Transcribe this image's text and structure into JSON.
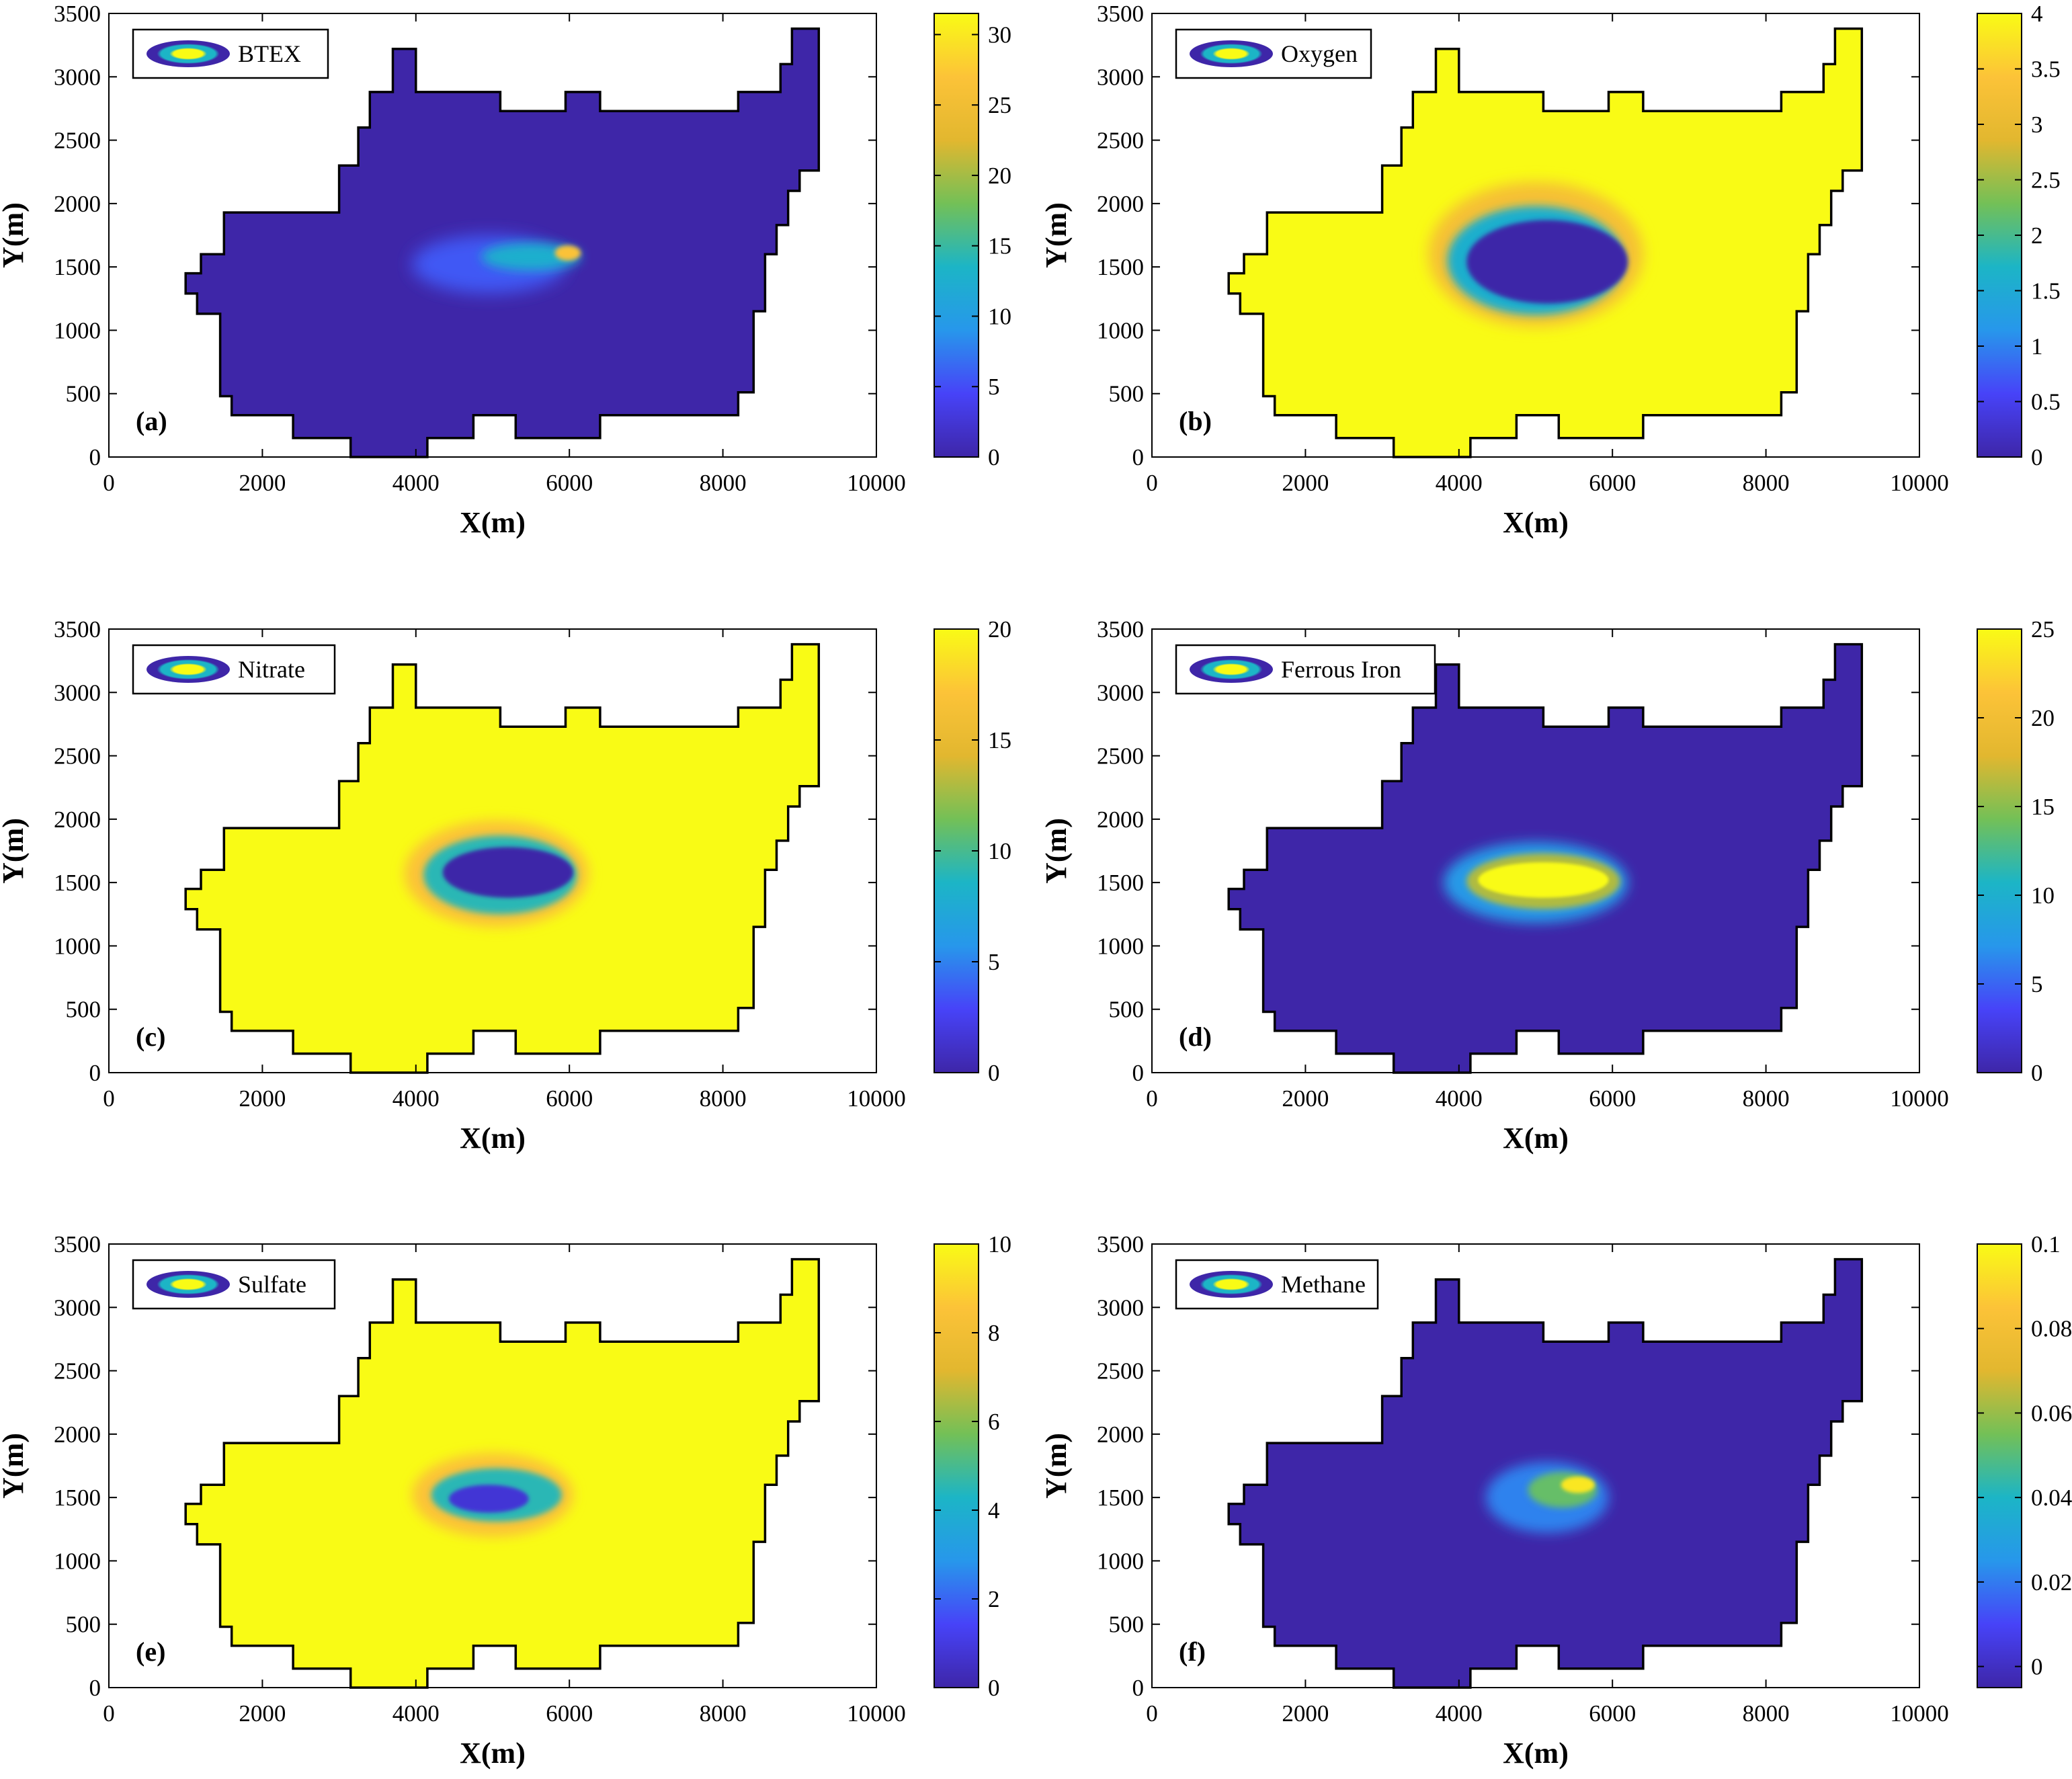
{
  "chart_data": [
    {
      "type": "heatmap",
      "panel_label": "(a)",
      "legend": "BTEX",
      "xlabel": "X(m)",
      "ylabel": "Y(m)",
      "xlim": [
        0,
        10000
      ],
      "ylim": [
        0,
        3500
      ],
      "xticks": [
        "0",
        "2000",
        "4000",
        "6000",
        "8000",
        "10000"
      ],
      "yticks": [
        "0",
        "500",
        "1000",
        "1500",
        "2000",
        "2500",
        "3000",
        "3500"
      ],
      "colorbar": {
        "min": 0,
        "max": 31.5,
        "ticks": [
          "0",
          "5",
          "10",
          "15",
          "20",
          "25",
          "30"
        ]
      },
      "background_level": 0,
      "plume": [
        {
          "cx": 4950,
          "cy": 1520,
          "rx": 1000,
          "ry": 230,
          "level": 0.18,
          "blur": 110
        },
        {
          "cx": 5500,
          "cy": 1580,
          "rx": 650,
          "ry": 110,
          "level": 0.4,
          "blur": 70
        },
        {
          "cx": 5980,
          "cy": 1610,
          "rx": 170,
          "ry": 60,
          "level": 0.85,
          "blur": 30
        }
      ]
    },
    {
      "type": "heatmap",
      "panel_label": "(b)",
      "legend": "Oxygen",
      "xlabel": "X(m)",
      "ylabel": "Y(m)",
      "xlim": [
        0,
        10000
      ],
      "ylim": [
        0,
        3500
      ],
      "xticks": [
        "0",
        "2000",
        "4000",
        "6000",
        "8000",
        "10000"
      ],
      "yticks": [
        "0",
        "500",
        "1000",
        "1500",
        "2000",
        "2500",
        "3000",
        "3500"
      ],
      "colorbar": {
        "min": 0,
        "max": 4,
        "ticks": [
          "0",
          "0.5",
          "1",
          "1.5",
          "2",
          "2.5",
          "3",
          "3.5",
          "4"
        ]
      },
      "background_level": 1,
      "plume": [
        {
          "cx": 5000,
          "cy": 1600,
          "rx": 1400,
          "ry": 570,
          "level": 0.82,
          "blur": 90
        },
        {
          "cx": 5000,
          "cy": 1550,
          "rx": 1150,
          "ry": 430,
          "level": 0.4,
          "blur": 55
        },
        {
          "cx": 5150,
          "cy": 1540,
          "rx": 1050,
          "ry": 330,
          "level": 0.0,
          "blur": 30
        }
      ]
    },
    {
      "type": "heatmap",
      "panel_label": "(c)",
      "legend": "Nitrate",
      "xlabel": "X(m)",
      "ylabel": "Y(m)",
      "xlim": [
        0,
        10000
      ],
      "ylim": [
        0,
        3500
      ],
      "xticks": [
        "0",
        "2000",
        "4000",
        "6000",
        "8000",
        "10000"
      ],
      "yticks": [
        "0",
        "500",
        "1000",
        "1500",
        "2000",
        "2500",
        "3000",
        "3500"
      ],
      "colorbar": {
        "min": 0,
        "max": 20,
        "ticks": [
          "0",
          "5",
          "10",
          "15",
          "20"
        ]
      },
      "background_level": 1,
      "plume": [
        {
          "cx": 5050,
          "cy": 1570,
          "rx": 1200,
          "ry": 420,
          "level": 0.85,
          "blur": 80
        },
        {
          "cx": 5100,
          "cy": 1560,
          "rx": 1000,
          "ry": 310,
          "level": 0.45,
          "blur": 45
        },
        {
          "cx": 5200,
          "cy": 1580,
          "rx": 850,
          "ry": 200,
          "level": 0.0,
          "blur": 25
        }
      ]
    },
    {
      "type": "heatmap",
      "panel_label": "(d)",
      "legend": "Ferrous Iron",
      "xlabel": "X(m)",
      "ylabel": "Y(m)",
      "xlim": [
        0,
        10000
      ],
      "ylim": [
        0,
        3500
      ],
      "xticks": [
        "0",
        "2000",
        "4000",
        "6000",
        "8000",
        "10000"
      ],
      "yticks": [
        "0",
        "500",
        "1000",
        "1500",
        "2000",
        "2500",
        "3000",
        "3500"
      ],
      "colorbar": {
        "min": 0,
        "max": 25,
        "ticks": [
          "0",
          "5",
          "10",
          "15",
          "20",
          "25"
        ]
      },
      "background_level": 0,
      "plume": [
        {
          "cx": 5000,
          "cy": 1500,
          "rx": 1200,
          "ry": 320,
          "level": 0.3,
          "blur": 80
        },
        {
          "cx": 5100,
          "cy": 1510,
          "rx": 1000,
          "ry": 220,
          "level": 0.65,
          "blur": 40
        },
        {
          "cx": 5100,
          "cy": 1520,
          "rx": 850,
          "ry": 140,
          "level": 1.0,
          "blur": 20
        }
      ]
    },
    {
      "type": "heatmap",
      "panel_label": "(e)",
      "legend": "Sulfate",
      "xlabel": "X(m)",
      "ylabel": "Y(m)",
      "xlim": [
        0,
        10000
      ],
      "ylim": [
        0,
        3500
      ],
      "xticks": [
        "0",
        "2000",
        "4000",
        "6000",
        "8000",
        "10000"
      ],
      "yticks": [
        "0",
        "500",
        "1000",
        "1500",
        "2000",
        "2500",
        "3000",
        "3500"
      ],
      "colorbar": {
        "min": 0,
        "max": 10,
        "ticks": [
          "0",
          "2",
          "4",
          "6",
          "8",
          "10"
        ]
      },
      "background_level": 1,
      "plume": [
        {
          "cx": 5000,
          "cy": 1520,
          "rx": 1050,
          "ry": 330,
          "level": 0.85,
          "blur": 80
        },
        {
          "cx": 5050,
          "cy": 1520,
          "rx": 850,
          "ry": 210,
          "level": 0.45,
          "blur": 40
        },
        {
          "cx": 4950,
          "cy": 1490,
          "rx": 520,
          "ry": 110,
          "level": 0.08,
          "blur": 25
        }
      ]
    },
    {
      "type": "heatmap",
      "panel_label": "(f)",
      "legend": "Methane",
      "xlabel": "X(m)",
      "ylabel": "Y(m)",
      "xlim": [
        0,
        10000
      ],
      "ylim": [
        0,
        3500
      ],
      "xticks": [
        "0",
        "2000",
        "4000",
        "6000",
        "8000",
        "10000"
      ],
      "yticks": [
        "0",
        "500",
        "1000",
        "1500",
        "2000",
        "2500",
        "3000",
        "3500"
      ],
      "colorbar": {
        "min": -0.005,
        "max": 0.1,
        "ticks": [
          "0",
          "0.02",
          "0.04",
          "0.06",
          "0.08",
          "0.1"
        ]
      },
      "background_level": 0,
      "plume": [
        {
          "cx": 5150,
          "cy": 1500,
          "rx": 800,
          "ry": 280,
          "level": 0.25,
          "blur": 80
        },
        {
          "cx": 5350,
          "cy": 1560,
          "rx": 450,
          "ry": 140,
          "level": 0.55,
          "blur": 45
        },
        {
          "cx": 5550,
          "cy": 1600,
          "rx": 220,
          "ry": 65,
          "level": 0.95,
          "blur": 25
        }
      ]
    }
  ],
  "domain_outline": [
    [
      1000,
      1450
    ],
    [
      1200,
      1450
    ],
    [
      1200,
      1600
    ],
    [
      1500,
      1600
    ],
    [
      1500,
      1930
    ],
    [
      3000,
      1930
    ],
    [
      3000,
      2300
    ],
    [
      3250,
      2300
    ],
    [
      3250,
      2600
    ],
    [
      3400,
      2600
    ],
    [
      3400,
      2880
    ],
    [
      3700,
      2880
    ],
    [
      3700,
      3220
    ],
    [
      4000,
      3220
    ],
    [
      4000,
      2880
    ],
    [
      5100,
      2880
    ],
    [
      5100,
      2730
    ],
    [
      5950,
      2730
    ],
    [
      5950,
      2880
    ],
    [
      6400,
      2880
    ],
    [
      6400,
      2730
    ],
    [
      8200,
      2730
    ],
    [
      8200,
      2880
    ],
    [
      8750,
      2880
    ],
    [
      8750,
      3100
    ],
    [
      8900,
      3100
    ],
    [
      8900,
      3380
    ],
    [
      9250,
      3380
    ],
    [
      9250,
      2260
    ],
    [
      9000,
      2260
    ],
    [
      9000,
      2100
    ],
    [
      8850,
      2100
    ],
    [
      8850,
      1830
    ],
    [
      8700,
      1830
    ],
    [
      8700,
      1600
    ],
    [
      8550,
      1600
    ],
    [
      8550,
      1150
    ],
    [
      8400,
      1150
    ],
    [
      8400,
      510
    ],
    [
      8200,
      510
    ],
    [
      8200,
      330
    ],
    [
      6400,
      330
    ],
    [
      6400,
      150
    ],
    [
      5300,
      150
    ],
    [
      5300,
      330
    ],
    [
      4750,
      330
    ],
    [
      4750,
      150
    ],
    [
      4150,
      150
    ],
    [
      4150,
      0
    ],
    [
      3150,
      0
    ],
    [
      3150,
      150
    ],
    [
      2400,
      150
    ],
    [
      2400,
      330
    ],
    [
      1600,
      330
    ],
    [
      1600,
      480
    ],
    [
      1450,
      480
    ],
    [
      1450,
      1130
    ],
    [
      1150,
      1130
    ],
    [
      1150,
      1290
    ],
    [
      1000,
      1290
    ]
  ],
  "colormap": [
    "#3e26a8",
    "#4743f8",
    "#2797eb",
    "#1cb5c6",
    "#73c057",
    "#e2b72f",
    "#fcc338",
    "#f9fb15"
  ]
}
